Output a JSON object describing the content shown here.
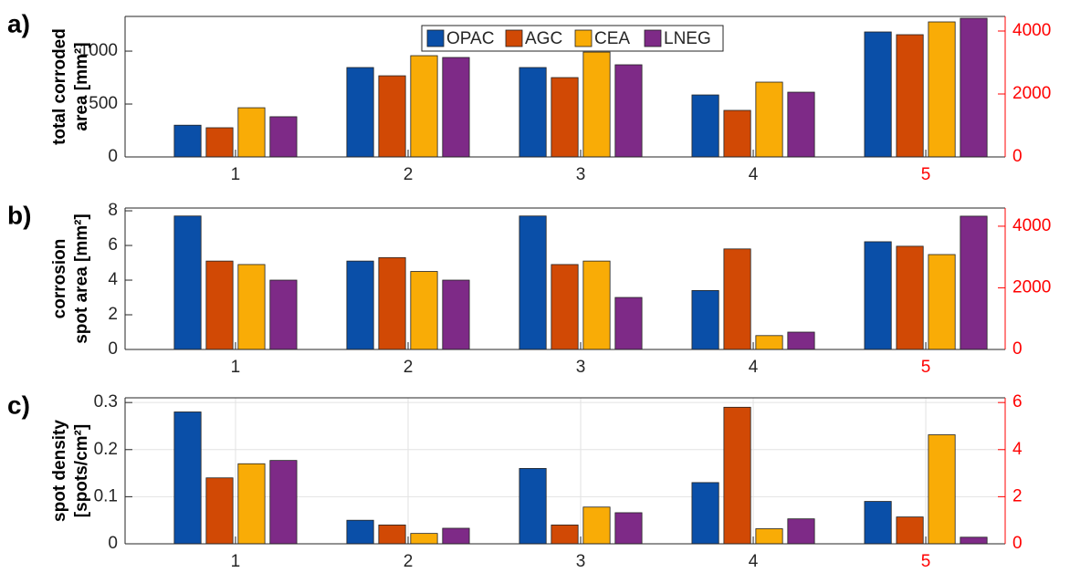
{
  "chart_data": [
    {
      "type": "bar",
      "panel_label": "a)",
      "ylabel": [
        "total corroded",
        "area [mm²]"
      ],
      "categories": [
        "1",
        "2",
        "3",
        "4",
        "5"
      ],
      "y2_categories": [
        "5"
      ],
      "series": [
        {
          "name": "OPAC",
          "color": "#0a4fa8",
          "values": [
            300,
            845,
            845,
            586,
            3971
          ]
        },
        {
          "name": "AGC",
          "color": "#d14905",
          "values": [
            276,
            767,
            750,
            440,
            3884
          ]
        },
        {
          "name": "CEA",
          "color": "#f9ac06",
          "values": [
            465,
            957,
            991,
            707,
            4290
          ]
        },
        {
          "name": "LNEG",
          "color": "#7e2a87",
          "values": [
            380,
            940,
            871,
            612,
            4406
          ]
        }
      ],
      "ylim": [
        0,
        1328
      ],
      "yticks": [
        0,
        500,
        1000
      ],
      "y2lim": [
        0,
        4464
      ],
      "y2ticks": [
        0,
        2000,
        4000
      ],
      "y2_color": "#ff0000",
      "grid": false,
      "legend": "upper center"
    },
    {
      "type": "bar",
      "panel_label": "b)",
      "ylabel": [
        "corrosion",
        "spot area [mm²]"
      ],
      "categories": [
        "1",
        "2",
        "3",
        "4",
        "5"
      ],
      "y2_categories": [
        "5"
      ],
      "series": [
        {
          "name": "OPAC",
          "color": "#0a4fa8",
          "values": [
            7.7,
            5.1,
            7.7,
            3.4,
            3496
          ]
        },
        {
          "name": "AGC",
          "color": "#d14905",
          "values": [
            5.1,
            5.3,
            4.9,
            5.8,
            3350
          ]
        },
        {
          "name": "CEA",
          "color": "#f9ac06",
          "values": [
            4.9,
            4.5,
            5.1,
            0.8,
            3080
          ]
        },
        {
          "name": "LNEG",
          "color": "#7e2a87",
          "values": [
            4.0,
            4.0,
            3.0,
            1.0,
            4326
          ]
        }
      ],
      "ylim": [
        0,
        8.16
      ],
      "yticks": [
        0,
        2,
        4,
        6,
        8
      ],
      "y2lim": [
        0,
        4590
      ],
      "y2ticks": [
        0,
        2000,
        4000
      ],
      "y2_color": "#ff0000",
      "grid": false
    },
    {
      "type": "bar",
      "panel_label": "c)",
      "ylabel": [
        "spot density",
        "[spots/cm²]"
      ],
      "categories": [
        "1",
        "2",
        "3",
        "4",
        "5"
      ],
      "y2_categories": [
        "5"
      ],
      "series": [
        {
          "name": "OPAC",
          "color": "#0a4fa8",
          "values": [
            0.28,
            0.05,
            0.16,
            0.13,
            1.8
          ]
        },
        {
          "name": "AGC",
          "color": "#d14905",
          "values": [
            0.14,
            0.04,
            0.04,
            0.29,
            1.14
          ]
        },
        {
          "name": "CEA",
          "color": "#f9ac06",
          "values": [
            0.17,
            0.022,
            0.078,
            0.032,
            4.63
          ]
        },
        {
          "name": "LNEG",
          "color": "#7e2a87",
          "values": [
            0.177,
            0.033,
            0.066,
            0.053,
            0.28
          ]
        }
      ],
      "ylim": [
        0,
        0.31
      ],
      "yticks": [
        0,
        0.1,
        0.2,
        0.3
      ],
      "y2lim": [
        0,
        6.2
      ],
      "y2ticks": [
        0,
        2,
        4,
        6
      ],
      "y2_color": "#ff0000",
      "grid": true
    }
  ]
}
